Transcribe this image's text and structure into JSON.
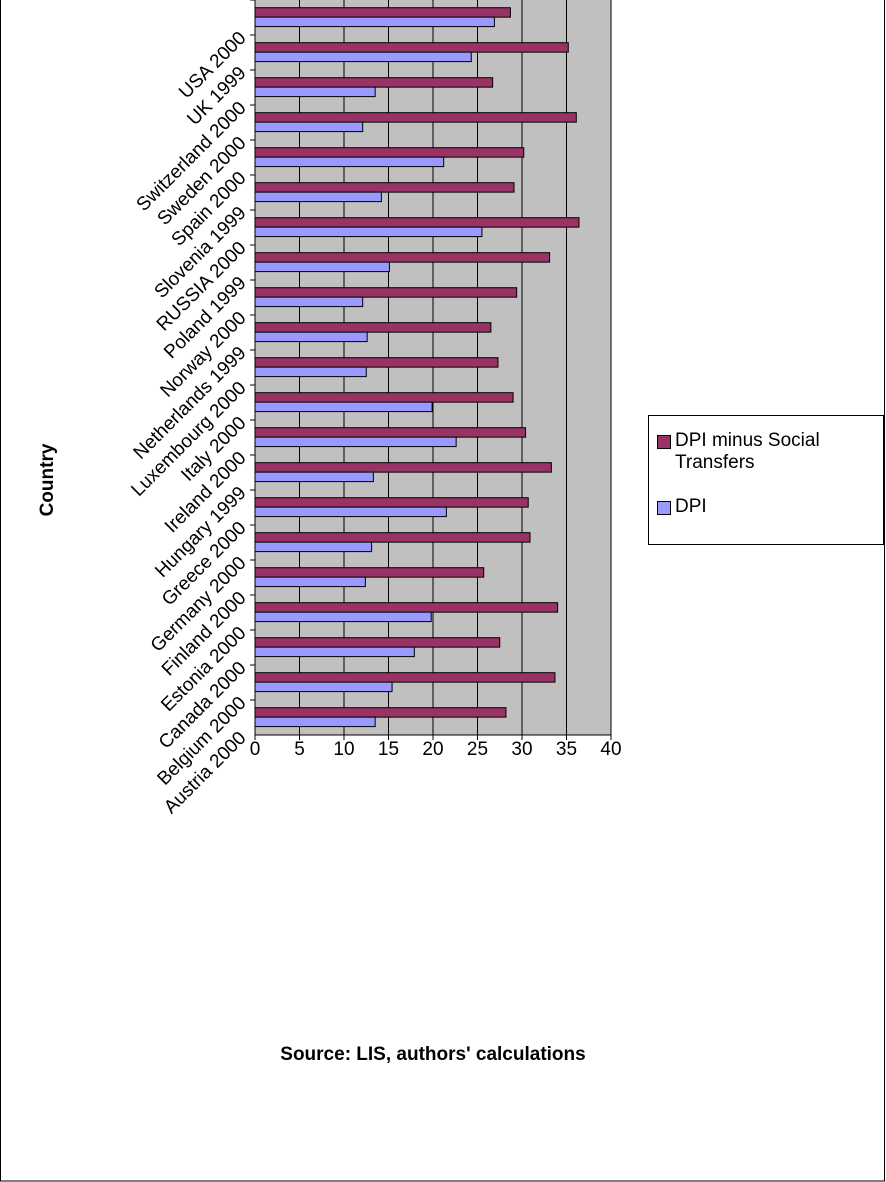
{
  "chart_data": {
    "type": "bar",
    "orientation": "horizontal",
    "y_label": "Country",
    "annotation": "Source: LIS, authors' calculations",
    "categories": [
      "USA 2000",
      "UK 1999",
      "Switzerland 2000",
      "Sweden 2000",
      "Spain 2000",
      "Slovenia 1999",
      "RUSSIA 2000",
      "Poland 1999",
      "Norway 2000",
      "Netherlands 1999",
      "Luxembourg 2000",
      "Italy 2000",
      "Ireland 2000",
      "Hungary 1999",
      "Greece 2000",
      "Germany 2000",
      "Finland 2000",
      "Estonia 2000",
      "Canada 2000",
      "Belgium 2000",
      "Austria 2000"
    ],
    "series": [
      {
        "name": "DPI minus Social Transfers",
        "color": "#993366",
        "values": [
          28.7,
          35.2,
          26.7,
          36.1,
          30.2,
          29.1,
          36.4,
          33.1,
          29.4,
          26.5,
          27.3,
          29.0,
          30.4,
          33.3,
          30.7,
          30.9,
          25.7,
          34.0,
          27.5,
          33.7,
          28.2
        ]
      },
      {
        "name": "DPI",
        "color": "#9999ff",
        "values": [
          26.9,
          24.3,
          13.5,
          12.1,
          21.2,
          14.2,
          25.5,
          15.1,
          12.1,
          12.6,
          12.5,
          19.9,
          22.6,
          13.3,
          21.5,
          13.1,
          12.4,
          19.8,
          17.9,
          15.4,
          13.5
        ]
      }
    ],
    "xlim": [
      0,
      40
    ],
    "xticks": [
      0,
      5,
      10,
      15,
      20,
      25,
      30,
      35,
      40
    ],
    "grid": true,
    "legend": "right"
  }
}
